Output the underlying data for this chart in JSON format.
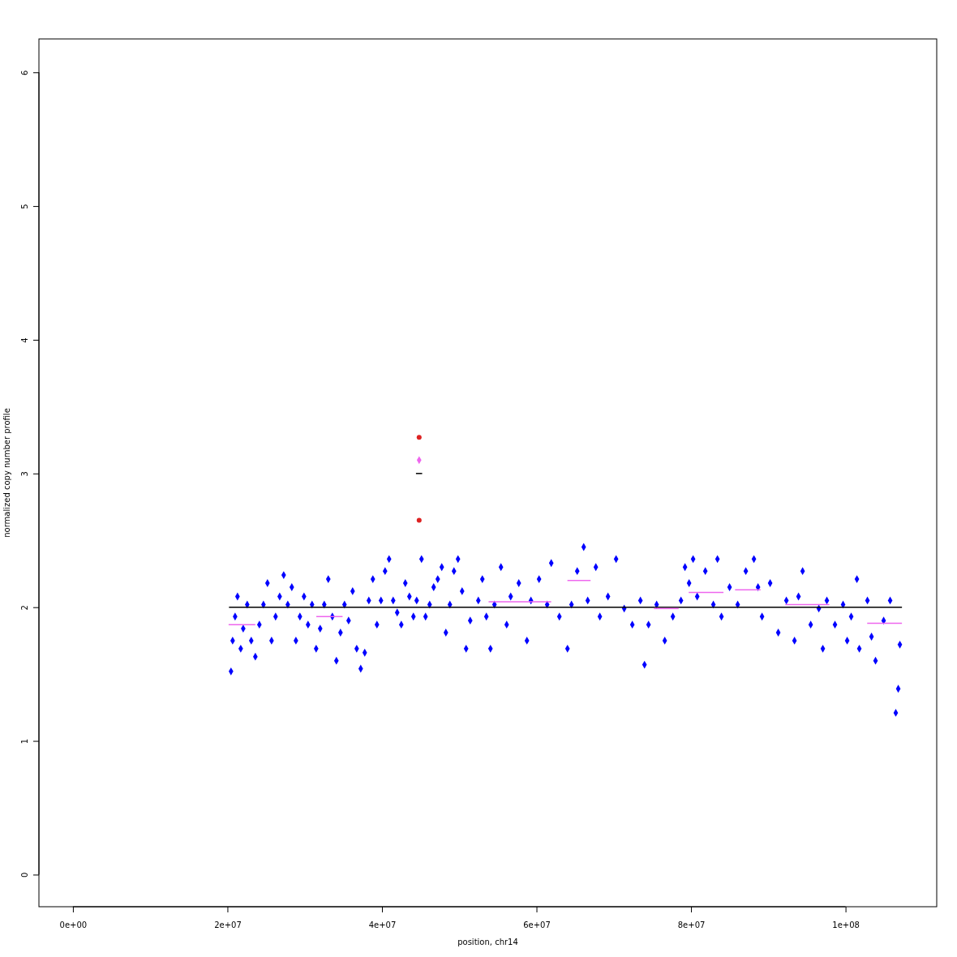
{
  "chart_data": {
    "type": "scatter",
    "xlabel": "position, chr14",
    "ylabel": "normalized copy number profile",
    "xlim": [
      -4400000,
      111800000
    ],
    "ylim": [
      -0.24,
      6.25
    ],
    "xticks": [
      {
        "value": 0,
        "label": "0e+00"
      },
      {
        "value": 20000000,
        "label": "2e+07"
      },
      {
        "value": 40000000,
        "label": "4e+07"
      },
      {
        "value": 60000000,
        "label": "6e+07"
      },
      {
        "value": 80000000,
        "label": "8e+07"
      },
      {
        "value": 100000000,
        "label": "1e+08"
      }
    ],
    "yticks": [
      0,
      1,
      2,
      3,
      4,
      5,
      6
    ],
    "grid": false,
    "marker": "diamond",
    "series": [
      {
        "color": "#0000ff",
        "x": [
          20460000,
          20670000,
          20990000,
          21300000,
          21720000,
          22040000,
          22560000,
          23080000,
          23610000,
          24130000,
          24660000,
          25180000,
          25710000,
          26230000,
          26760000,
          27280000,
          27810000,
          28330000,
          28860000,
          29380000,
          29910000,
          30430000,
          30950000,
          31480000,
          32000000,
          32530000,
          33050000,
          33580000,
          34100000,
          34630000,
          35150000,
          35680000,
          36200000,
          36730000,
          37250000,
          37770000,
          38300000,
          38820000,
          39350000,
          39870000,
          40400000,
          40920000,
          41450000,
          41970000,
          42500000,
          43020000,
          43550000,
          44070000,
          44490000,
          45120000,
          45640000,
          46170000,
          46690000,
          47220000,
          47740000,
          48270000,
          48790000,
          49320000,
          49840000,
          50370000,
          50890000,
          51420000,
          52470000,
          52990000,
          53510000,
          54040000,
          54560000,
          55400000,
          56140000,
          56660000,
          57710000,
          58760000,
          59280000,
          60330000,
          61380000,
          61910000,
          62960000,
          64010000,
          64530000,
          65270000,
          66110000,
          66630000,
          67680000,
          68200000,
          69250000,
          70300000,
          71350000,
          72400000,
          73450000,
          73980000,
          74500000,
          75550000,
          76600000,
          77650000,
          78700000,
          79220000,
          79750000,
          80270000,
          80800000,
          81850000,
          82890000,
          83420000,
          83940000,
          84990000,
          86040000,
          87090000,
          88140000,
          88670000,
          89190000,
          90240000,
          91290000,
          92340000,
          93390000,
          93910000,
          94440000,
          95490000,
          96540000,
          97060000,
          97580000,
          98630000,
          99680000,
          100210000,
          100730000,
          101470000,
          101780000,
          102830000,
          103360000,
          103880000,
          104930000,
          105770000,
          106500000,
          106820000,
          107030000
        ],
        "values": [
          1.52,
          1.75,
          1.93,
          2.08,
          1.69,
          1.84,
          2.02,
          1.75,
          1.63,
          1.87,
          2.02,
          2.18,
          1.75,
          1.93,
          2.08,
          2.24,
          2.02,
          2.15,
          1.75,
          1.93,
          2.08,
          1.87,
          2.02,
          1.69,
          1.84,
          2.02,
          2.21,
          1.93,
          1.6,
          1.81,
          2.02,
          1.9,
          2.12,
          1.69,
          1.54,
          1.66,
          2.05,
          2.21,
          1.87,
          2.05,
          2.27,
          2.36,
          2.05,
          1.96,
          1.87,
          2.18,
          2.08,
          1.93,
          2.05,
          2.36,
          1.93,
          2.02,
          2.15,
          2.21,
          2.3,
          1.81,
          2.02,
          2.27,
          2.36,
          2.12,
          1.69,
          1.9,
          2.05,
          2.21,
          1.93,
          1.69,
          2.02,
          2.3,
          1.87,
          2.08,
          2.18,
          1.75,
          2.05,
          2.21,
          2.02,
          2.33,
          1.93,
          1.69,
          2.02,
          2.27,
          2.45,
          2.05,
          2.3,
          1.93,
          2.08,
          2.36,
          1.99,
          1.87,
          2.05,
          1.57,
          1.87,
          2.02,
          1.75,
          1.93,
          2.05,
          2.3,
          2.18,
          2.36,
          2.08,
          2.27,
          2.02,
          2.36,
          1.93,
          2.15,
          2.02,
          2.27,
          2.36,
          2.15,
          1.93,
          2.18,
          1.81,
          2.05,
          1.75,
          2.08,
          2.27,
          1.87,
          1.99,
          1.69,
          2.05,
          1.87,
          2.02,
          1.75,
          1.93,
          2.21,
          1.69,
          2.05,
          1.78,
          1.6,
          1.9,
          2.05,
          1.21,
          1.39,
          1.72
        ]
      },
      {
        "color": "#dd2222",
        "marker": "circle",
        "x": [
          44810000,
          44810000
        ],
        "values": [
          3.27,
          2.65
        ]
      },
      {
        "color": "#ee66ee",
        "x": [
          44810000
        ],
        "values": [
          3.1
        ]
      },
      {
        "type": "line",
        "marker": "none",
        "color": "#000000",
        "x": [
          20200000,
          107300000
        ],
        "values": [
          2,
          2
        ]
      },
      {
        "type": "line",
        "marker": "none",
        "color": "#000000",
        "x": [
          44400000,
          45200000
        ],
        "values": [
          3,
          3
        ]
      },
      {
        "type": "line",
        "marker": "none",
        "color": "#ee66ee",
        "x": [
          20150000,
          23600000
        ],
        "values": [
          1.87,
          1.87
        ]
      },
      {
        "type": "line",
        "marker": "none",
        "color": "#ee66ee",
        "x": [
          31500000,
          34900000
        ],
        "values": [
          1.93,
          1.93
        ]
      },
      {
        "type": "line",
        "marker": "none",
        "color": "#ee66ee",
        "x": [
          53800000,
          61900000
        ],
        "values": [
          2.04,
          2.04
        ]
      },
      {
        "type": "line",
        "marker": "none",
        "color": "#ee66ee",
        "x": [
          64000000,
          67000000
        ],
        "values": [
          2.2,
          2.2
        ]
      },
      {
        "type": "line",
        "marker": "none",
        "color": "#ee66ee",
        "x": [
          75200000,
          78400000
        ],
        "values": [
          1.99,
          1.99
        ]
      },
      {
        "type": "line",
        "marker": "none",
        "color": "#ee66ee",
        "x": [
          79700000,
          84200000
        ],
        "values": [
          2.11,
          2.11
        ]
      },
      {
        "type": "line",
        "marker": "none",
        "color": "#ee66ee",
        "x": [
          85700000,
          89000000
        ],
        "values": [
          2.13,
          2.13
        ]
      },
      {
        "type": "line",
        "marker": "none",
        "color": "#ee66ee",
        "x": [
          92200000,
          97900000
        ],
        "values": [
          2.02,
          2.02
        ]
      },
      {
        "type": "line",
        "marker": "none",
        "color": "#ee66ee",
        "x": [
          102800000,
          107300000
        ],
        "values": [
          1.88,
          1.88
        ]
      }
    ]
  }
}
